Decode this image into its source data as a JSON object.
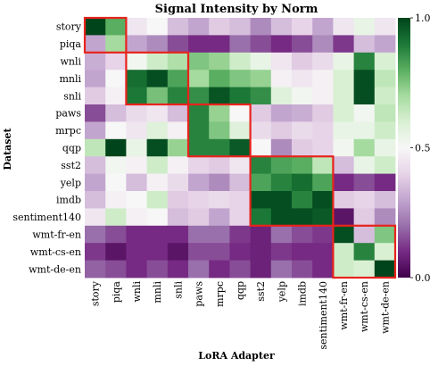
{
  "chart_data": {
    "type": "heatmap",
    "title": "Signal Intensity by Norm",
    "xlabel": "LoRA Adapter",
    "ylabel": "Dataset",
    "columns": [
      "story",
      "piqa",
      "wnli",
      "mnli",
      "snli",
      "paws",
      "mrpc",
      "qqp",
      "sst2",
      "yelp",
      "imdb",
      "sentiment140",
      "wmt-fr-en",
      "wmt-cs-en",
      "wmt-de-en"
    ],
    "rows": [
      "story",
      "piqa",
      "wnli",
      "mnli",
      "snli",
      "paws",
      "mrpc",
      "qqp",
      "sst2",
      "yelp",
      "imdb",
      "sentiment140",
      "wmt-fr-en",
      "wmt-cs-en",
      "wmt-de-en"
    ],
    "values": [
      [
        1.0,
        0.8,
        0.45,
        0.5,
        0.35,
        0.3,
        0.38,
        0.35,
        0.25,
        0.35,
        0.4,
        0.3,
        0.45,
        0.55,
        0.45
      ],
      [
        0.3,
        0.7,
        0.3,
        0.25,
        0.15,
        0.1,
        0.1,
        0.2,
        0.15,
        0.1,
        0.15,
        0.25,
        0.12,
        0.35,
        0.3
      ],
      [
        0.32,
        0.4,
        0.52,
        0.62,
        0.68,
        0.75,
        0.72,
        0.62,
        0.55,
        0.45,
        0.38,
        0.42,
        0.55,
        0.88,
        0.6
      ],
      [
        0.3,
        0.5,
        0.92,
        0.98,
        0.82,
        0.7,
        0.8,
        0.75,
        0.72,
        0.48,
        0.45,
        0.48,
        0.6,
        0.98,
        0.65
      ],
      [
        0.38,
        0.48,
        0.9,
        0.76,
        0.88,
        0.86,
        0.97,
        0.9,
        0.86,
        0.58,
        0.52,
        0.48,
        0.6,
        0.98,
        0.62
      ],
      [
        0.15,
        0.35,
        0.42,
        0.45,
        0.35,
        0.88,
        0.72,
        0.5,
        0.38,
        0.3,
        0.32,
        0.38,
        0.6,
        0.52,
        0.65
      ],
      [
        0.3,
        0.5,
        0.45,
        0.58,
        0.48,
        0.88,
        0.75,
        0.58,
        0.42,
        0.38,
        0.42,
        0.4,
        0.55,
        0.55,
        0.62
      ],
      [
        0.65,
        1.0,
        0.55,
        0.98,
        0.72,
        0.88,
        0.88,
        0.96,
        0.5,
        0.25,
        0.38,
        0.4,
        0.52,
        0.7,
        0.55
      ],
      [
        0.35,
        0.52,
        0.48,
        0.62,
        0.48,
        0.4,
        0.38,
        0.45,
        0.88,
        0.82,
        0.8,
        0.65,
        0.35,
        0.55,
        0.62
      ],
      [
        0.3,
        0.5,
        0.35,
        0.48,
        0.42,
        0.3,
        0.25,
        0.35,
        0.82,
        0.88,
        0.92,
        0.82,
        0.1,
        0.15,
        0.1
      ],
      [
        0.35,
        0.48,
        0.5,
        0.62,
        0.38,
        0.4,
        0.42,
        0.4,
        0.98,
        0.98,
        0.88,
        0.98,
        0.38,
        0.4,
        0.35
      ],
      [
        0.45,
        0.62,
        0.48,
        0.5,
        0.35,
        0.38,
        0.3,
        0.4,
        0.9,
        0.98,
        0.98,
        0.96,
        0.05,
        0.38,
        0.25
      ],
      [
        0.2,
        0.15,
        0.1,
        0.1,
        0.1,
        0.2,
        0.2,
        0.12,
        0.08,
        0.2,
        0.15,
        0.12,
        0.98,
        0.35,
        0.75
      ],
      [
        0.12,
        0.05,
        0.1,
        0.1,
        0.05,
        0.15,
        0.15,
        0.1,
        0.08,
        0.12,
        0.1,
        0.1,
        0.62,
        0.88,
        0.6
      ],
      [
        0.18,
        0.15,
        0.1,
        0.15,
        0.1,
        0.2,
        0.1,
        0.15,
        0.08,
        0.2,
        0.15,
        0.1,
        0.62,
        0.6,
        1.0
      ]
    ],
    "vmin": 0.0,
    "vmax": 1.0,
    "colorbar_ticks": [
      "0.0",
      "0.5",
      "1.0"
    ],
    "colormap": "PRGn",
    "highlight_color": "#e8231c",
    "highlight_groups": [
      {
        "rows": [
          "story",
          "piqa"
        ],
        "cols": [
          "story",
          "piqa"
        ]
      },
      {
        "rows": [
          "wnli",
          "mnli",
          "snli"
        ],
        "cols": [
          "wnli",
          "mnli",
          "snli"
        ]
      },
      {
        "rows": [
          "paws",
          "mrpc",
          "qqp"
        ],
        "cols": [
          "paws",
          "mrpc",
          "qqp"
        ]
      },
      {
        "rows": [
          "sst2",
          "yelp",
          "imdb",
          "sentiment140"
        ],
        "cols": [
          "sst2",
          "yelp",
          "imdb",
          "sentiment140"
        ]
      },
      {
        "rows": [
          "wmt-fr-en",
          "wmt-cs-en",
          "wmt-de-en"
        ],
        "cols": [
          "wmt-fr-en",
          "wmt-cs-en",
          "wmt-de-en"
        ]
      }
    ]
  }
}
